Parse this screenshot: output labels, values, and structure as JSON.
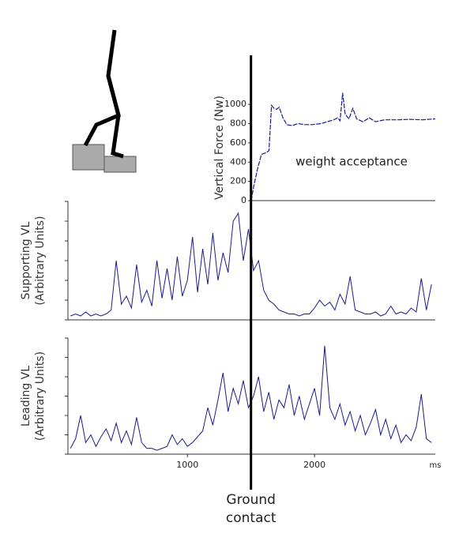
{
  "chart_data": [
    {
      "type": "line",
      "ylabel": [
        "Vertical Force (Nw)"
      ],
      "annotation": "weight acceptance",
      "xlim": [
        1500,
        2950
      ],
      "ylim": [
        0,
        1100
      ],
      "yticks": [
        0,
        200,
        400,
        600,
        800,
        1000
      ],
      "tick_labels": true,
      "color": "#1a1a8c",
      "x": [
        1500,
        1520,
        1550,
        1580,
        1620,
        1640,
        1660,
        1680,
        1700,
        1720,
        1750,
        1780,
        1820,
        1870,
        1920,
        1980,
        2050,
        2100,
        2150,
        2180,
        2200,
        2220,
        2240,
        2270,
        2300,
        2330,
        2380,
        2430,
        2480,
        2550,
        2650,
        2750,
        2850,
        2950
      ],
      "values": [
        0,
        150,
        330,
        480,
        500,
        520,
        990,
        960,
        950,
        970,
        860,
        790,
        780,
        800,
        790,
        790,
        800,
        820,
        840,
        860,
        830,
        1120,
        900,
        850,
        960,
        850,
        820,
        860,
        820,
        840,
        840,
        845,
        840,
        850
      ]
    },
    {
      "type": "line",
      "ylabel": [
        "Supporting VL",
        "(Arbitrary Units)"
      ],
      "xlim": [
        60,
        2950
      ],
      "ylim": [
        0,
        6
      ],
      "yticks": [
        0,
        1,
        2,
        3,
        4,
        5,
        6
      ],
      "tick_labels": false,
      "color": "#1a1a8c",
      "x": [
        80,
        120,
        160,
        200,
        240,
        280,
        320,
        360,
        400,
        440,
        480,
        520,
        560,
        600,
        640,
        680,
        720,
        760,
        800,
        840,
        880,
        920,
        960,
        1000,
        1040,
        1080,
        1120,
        1160,
        1200,
        1240,
        1280,
        1320,
        1360,
        1400,
        1440,
        1480,
        1520,
        1560,
        1600,
        1640,
        1680,
        1720,
        1760,
        1800,
        1840,
        1880,
        1920,
        1960,
        2000,
        2040,
        2080,
        2120,
        2160,
        2200,
        2240,
        2280,
        2320,
        2360,
        2400,
        2440,
        2480,
        2520,
        2560,
        2600,
        2640,
        2680,
        2720,
        2760,
        2800,
        2840,
        2880,
        2920
      ],
      "values": [
        0.2,
        0.3,
        0.2,
        0.4,
        0.2,
        0.3,
        0.2,
        0.3,
        0.5,
        3.0,
        0.8,
        1.2,
        0.6,
        2.8,
        0.9,
        1.5,
        0.7,
        3.0,
        1.1,
        2.6,
        1.0,
        3.2,
        1.2,
        2.0,
        4.2,
        1.4,
        3.6,
        1.8,
        4.4,
        2.0,
        3.4,
        2.4,
        5.0,
        5.4,
        3.0,
        4.6,
        2.5,
        3.0,
        1.5,
        1.0,
        0.8,
        0.5,
        0.4,
        0.3,
        0.3,
        0.2,
        0.3,
        0.3,
        0.6,
        1.0,
        0.7,
        0.9,
        0.5,
        1.3,
        0.8,
        2.2,
        0.5,
        0.4,
        0.3,
        0.3,
        0.4,
        0.2,
        0.3,
        0.7,
        0.3,
        0.4,
        0.3,
        0.6,
        0.4,
        2.1,
        0.5,
        1.8
      ]
    },
    {
      "type": "line",
      "ylabel": [
        "Leading VL",
        "(Arbitrary Units)"
      ],
      "xlabel": "ms",
      "xlim": [
        60,
        2950
      ],
      "ylim": [
        0,
        6
      ],
      "yticks": [
        0,
        1,
        2,
        3,
        4,
        5,
        6
      ],
      "tick_labels": false,
      "xticks": [
        1000,
        2000
      ],
      "color": "#1a1a8c",
      "x": [
        80,
        120,
        160,
        200,
        240,
        280,
        320,
        360,
        400,
        440,
        480,
        520,
        560,
        600,
        640,
        680,
        720,
        760,
        800,
        840,
        880,
        920,
        960,
        1000,
        1040,
        1080,
        1120,
        1160,
        1200,
        1240,
        1280,
        1320,
        1360,
        1400,
        1440,
        1480,
        1520,
        1560,
        1600,
        1640,
        1680,
        1720,
        1760,
        1800,
        1840,
        1880,
        1920,
        1960,
        2000,
        2040,
        2080,
        2120,
        2160,
        2200,
        2240,
        2280,
        2320,
        2360,
        2400,
        2440,
        2480,
        2520,
        2560,
        2600,
        2640,
        2680,
        2720,
        2760,
        2800,
        2840,
        2880,
        2920
      ],
      "values": [
        0.3,
        0.8,
        2.0,
        0.6,
        1.0,
        0.4,
        0.9,
        1.3,
        0.7,
        1.6,
        0.6,
        1.2,
        0.5,
        1.9,
        0.6,
        0.3,
        0.3,
        0.2,
        0.3,
        0.4,
        1.0,
        0.5,
        0.8,
        0.4,
        0.6,
        0.9,
        1.2,
        2.4,
        1.5,
        2.8,
        4.2,
        2.2,
        3.4,
        2.6,
        3.8,
        2.4,
        3.0,
        4.0,
        2.2,
        3.2,
        1.8,
        2.8,
        2.4,
        3.6,
        2.0,
        3.0,
        1.8,
        2.6,
        3.4,
        2.0,
        5.6,
        2.4,
        1.8,
        2.6,
        1.5,
        2.2,
        1.2,
        2.0,
        1.0,
        1.6,
        2.3,
        1.0,
        1.8,
        0.8,
        1.5,
        0.6,
        1.0,
        0.7,
        1.4,
        3.1,
        0.8,
        0.6
      ]
    }
  ],
  "ground_contact": {
    "x": 1500,
    "label": [
      "Ground",
      "contact"
    ]
  }
}
